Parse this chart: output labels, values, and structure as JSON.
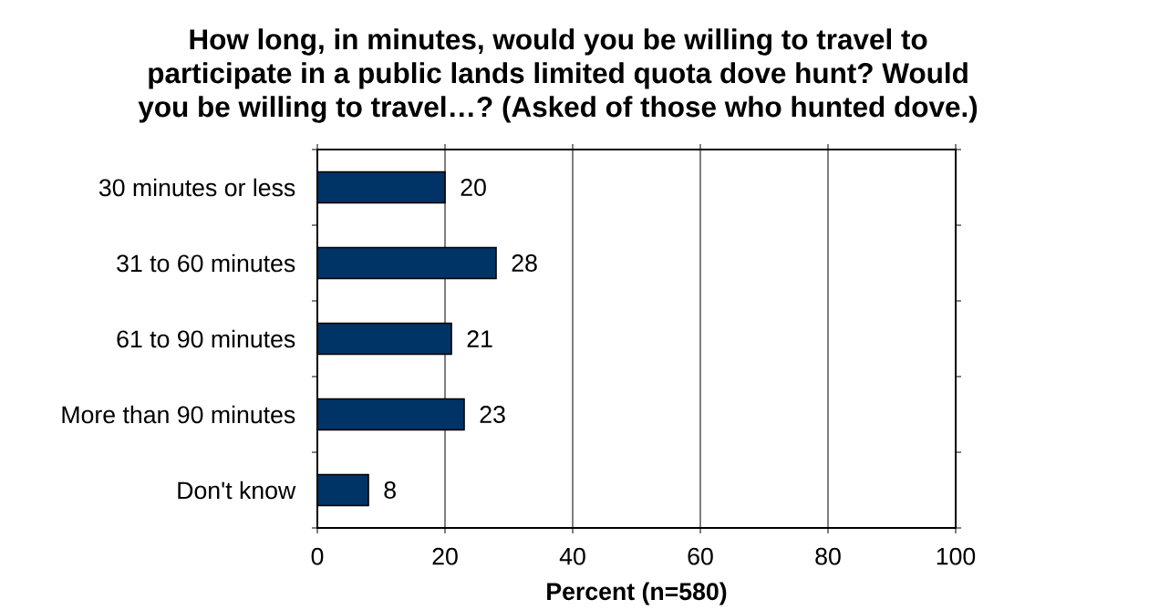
{
  "chart_data": {
    "type": "bar",
    "orientation": "horizontal",
    "title": "How long, in minutes, would you be willing to travel to participate in a public lands limited quota dove hunt? Would you be willing to travel…? (Asked of those who hunted dove.)",
    "xlabel": "Percent (n=580)",
    "categories": [
      "30 minutes or less",
      "31 to 60 minutes",
      "61 to 90 minutes",
      "More than 90 minutes",
      "Don't know"
    ],
    "values": [
      20,
      28,
      21,
      23,
      8
    ],
    "color": "#003366",
    "xlim": [
      0,
      100
    ],
    "xticks": [
      0,
      20,
      40,
      60,
      80,
      100
    ],
    "grid": "x",
    "data_labels": true
  }
}
